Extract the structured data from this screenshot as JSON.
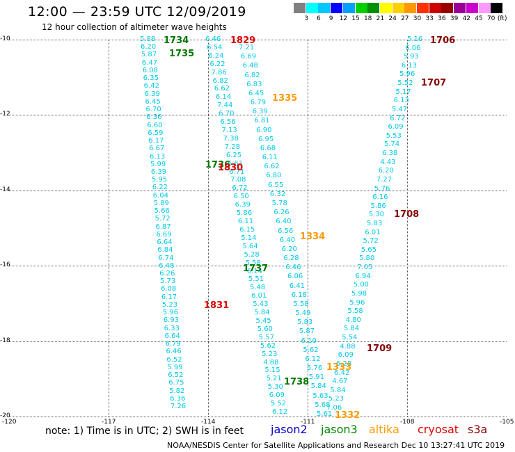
{
  "header": {
    "title": "12:00 — 23:59 UTC 12/09/2019",
    "subtitle": "12 hour collection of altimeter wave heights"
  },
  "colorbar": {
    "labels": [
      "3",
      "6",
      "9",
      "12",
      "15",
      "18",
      "21",
      "24",
      "27",
      "30",
      "33",
      "36",
      "39",
      "42",
      "45",
      "70",
      "(ft)"
    ],
    "colors": [
      "#808080",
      "#00ffff",
      "#00c8ff",
      "#0000ff",
      "#00a0ff",
      "#00d000",
      "#009000",
      "#ffff00",
      "#ffd000",
      "#ff9900",
      "#ff3300",
      "#cc0000",
      "#990000",
      "#990099",
      "#cc00cc",
      "#ff99ff",
      "#000000"
    ]
  },
  "axes": {
    "y_ticks": [
      "-10",
      "-12",
      "-14",
      "-16",
      "-18",
      "-20"
    ],
    "x_ticks": [
      "-120",
      "-117",
      "-114",
      "-111",
      "-108",
      "-105"
    ]
  },
  "time_labels": [
    {
      "text": "1734",
      "color": "#007700"
    },
    {
      "text": "1735",
      "color": "#007700"
    },
    {
      "text": "1829",
      "color": "#dd0000"
    },
    {
      "text": "1706",
      "color": "#880000"
    },
    {
      "text": "1707",
      "color": "#880000"
    },
    {
      "text": "1335",
      "color": "#ff9900"
    },
    {
      "text": "1736",
      "color": "#007700"
    },
    {
      "text": "1830",
      "color": "#dd0000"
    },
    {
      "text": "1708",
      "color": "#880000"
    },
    {
      "text": "1334",
      "color": "#ff9900"
    },
    {
      "text": "1737",
      "color": "#007700"
    },
    {
      "text": "1831",
      "color": "#dd0000"
    },
    {
      "text": "1709",
      "color": "#880000"
    },
    {
      "text": "1333",
      "color": "#ff9900"
    },
    {
      "text": "1738",
      "color": "#007700"
    },
    {
      "text": "1332",
      "color": "#ff9900"
    }
  ],
  "tracks": {
    "jason3_west": [
      "5.88",
      "6.20",
      "5.87",
      "6.47",
      "6.08",
      "6.35",
      "6.42",
      "6.39",
      "6.45",
      "6.70",
      "6.36",
      "6.60",
      "6.59",
      "6.17",
      "6.67",
      "6.13",
      "5.99",
      "6.39",
      "5.95",
      "6.22",
      "6.04",
      "5.89",
      "5.66",
      "5.72",
      "6.87",
      "6.69",
      "6.64",
      "6.84",
      "6.74",
      "6.48",
      "6.26",
      "5.73",
      "6.08",
      "6.17",
      "5.23",
      "5.96",
      "6.93",
      "6.33",
      "6.64",
      "6.79",
      "6.46",
      "6.52",
      "5.99",
      "6.52",
      "6.75",
      "5.82",
      "6.36",
      "7.26"
    ],
    "cryosat_west": [
      "6.46",
      "6.54",
      "6.24",
      "6.22",
      "7.86",
      "6.82",
      "6.62",
      "6.14",
      "7.44",
      "6.70",
      "6.56",
      "7.13",
      "7.38",
      "7.28",
      "6.25",
      "6.61",
      "6.71",
      "7.08",
      "6.72",
      "6.50",
      "6.39",
      "5.86",
      "6.11",
      "6.15",
      "5.14",
      "5.64",
      "5.28",
      "5.58",
      "6.14",
      "5.51",
      "5.48",
      "6.01",
      "5.43",
      "5.84",
      "5.45",
      "5.60",
      "5.57",
      "5.62",
      "5.23",
      "4.88",
      "5.15",
      "5.21",
      "5.30",
      "6.09",
      "5.52",
      "6.12"
    ],
    "altika_mid": [
      "7.21",
      "6.69",
      "6.48",
      "6.82",
      "6.83",
      "6.45",
      "6.79",
      "6.39",
      "6.81",
      "6.90",
      "6.95",
      "6.68",
      "6.11",
      "6.62",
      "6.80",
      "6.55",
      "6.32",
      "5.78",
      "6.26",
      "6.40",
      "6.56",
      "6.40",
      "6.20",
      "6.28",
      "6.46",
      "6.06",
      "6.41",
      "6.18",
      "5.58",
      "5.49",
      "5.83",
      "5.87",
      "6.10",
      "5.62",
      "6.12",
      "5.76",
      "5.91",
      "5.84",
      "5.63",
      "5.68",
      "5.61"
    ],
    "s3a_east": [
      "5.16",
      "6.06",
      "5.93",
      "6.13",
      "5.96",
      "5.52",
      "5.17",
      "6.13",
      "5.47",
      "6.72",
      "6.09",
      "5.53",
      "5.74",
      "6.38",
      "4.43",
      "6.20",
      "7.27",
      "5.76",
      "6.16",
      "5.86",
      "5.30",
      "5.83",
      "6.01",
      "5.72",
      "5.65",
      "5.80",
      "7.05",
      "6.94",
      "5.00",
      "5.98",
      "5.96",
      "5.58",
      "4.80",
      "5.84",
      "5.54",
      "4.88",
      "6.09",
      "6.28",
      "6.42",
      "4.67",
      "5.84",
      "5.23",
      "7.06"
    ]
  },
  "note": "note: 1) Time is in UTC; 2) SWH is in feet",
  "satellites": [
    {
      "name": "jason2",
      "color": "#0000cc"
    },
    {
      "name": "jason3",
      "color": "#008800"
    },
    {
      "name": "altika",
      "color": "#ff9900"
    },
    {
      "name": "cryosat",
      "color": "#dd0000"
    },
    {
      "name": "s3a",
      "color": "#880000"
    }
  ],
  "credit": "NOAA/NESDIS Center for Satellite Applications and Research    Dec 10 13:27:41 UTC 2019"
}
